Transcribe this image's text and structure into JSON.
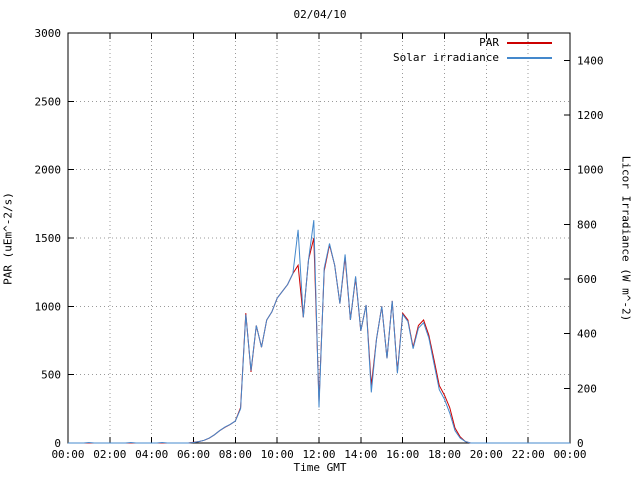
{
  "title": "02/04/10",
  "axes": {
    "x_label": "Time GMT",
    "y_left_label": "PAR (uEm^-2/s)",
    "y_right_label": "Licor Irradiance (W m^-2)"
  },
  "chart_data": {
    "type": "line",
    "title": "02/04/10",
    "xlabel": "Time GMT",
    "ylabel_left": "PAR (uEm^-2/s)",
    "ylabel_right": "Licor Irradiance (W m^-2)",
    "xlim": [
      0,
      24
    ],
    "ylim_left": [
      0,
      3000
    ],
    "ylim_right": [
      0,
      1500
    ],
    "grid": true,
    "legend_position": "top-right",
    "xticks": {
      "hours": [
        0,
        2,
        4,
        6,
        8,
        10,
        12,
        14,
        16,
        18,
        20,
        22,
        24
      ],
      "labels": [
        "00:00",
        "02:00",
        "04:00",
        "06:00",
        "08:00",
        "10:00",
        "12:00",
        "14:00",
        "16:00",
        "18:00",
        "20:00",
        "22:00",
        "00:00"
      ]
    },
    "yticks_left": [
      0,
      500,
      1000,
      1500,
      2000,
      2500,
      3000
    ],
    "yticks_right": [
      0,
      200,
      400,
      600,
      800,
      1000,
      1200,
      1400
    ],
    "x_hours": [
      0,
      0.25,
      0.5,
      0.75,
      1,
      1.25,
      1.5,
      1.75,
      2,
      2.25,
      2.5,
      2.75,
      3,
      3.25,
      3.5,
      3.75,
      4,
      4.25,
      4.5,
      4.75,
      5,
      5.25,
      5.5,
      5.75,
      6,
      6.25,
      6.5,
      6.75,
      7,
      7.25,
      7.5,
      7.75,
      8,
      8.25,
      8.5,
      8.75,
      9,
      9.25,
      9.5,
      9.75,
      10,
      10.25,
      10.5,
      10.75,
      11,
      11.25,
      11.5,
      11.75,
      12,
      12.25,
      12.5,
      12.75,
      13,
      13.25,
      13.5,
      13.75,
      14,
      14.25,
      14.5,
      14.75,
      15,
      15.25,
      15.5,
      15.75,
      16,
      16.25,
      16.5,
      16.75,
      17,
      17.25,
      17.5,
      17.75,
      18,
      18.25,
      18.5,
      18.75,
      19,
      19.25,
      19.5,
      19.75,
      20,
      20.25,
      20.5,
      20.75,
      21,
      21.25,
      21.5,
      21.75,
      22,
      22.25,
      22.5,
      22.75,
      23,
      23.25,
      23.5,
      23.75,
      24
    ],
    "series": [
      {
        "name": "PAR",
        "axis": "left",
        "color": "#cc0000",
        "values": [
          0,
          0,
          0,
          0,
          0,
          0,
          0,
          0,
          0,
          0,
          0,
          0,
          0,
          0,
          0,
          0,
          0,
          0,
          0,
          0,
          0,
          0,
          0,
          0,
          5,
          10,
          20,
          35,
          60,
          90,
          115,
          135,
          160,
          260,
          950,
          520,
          860,
          700,
          900,
          960,
          1060,
          1110,
          1160,
          1240,
          1300,
          920,
          1340,
          1500,
          300,
          1260,
          1450,
          1300,
          1020,
          1360,
          900,
          1210,
          820,
          1010,
          420,
          760,
          1000,
          620,
          1040,
          520,
          950,
          900,
          700,
          860,
          900,
          790,
          610,
          420,
          350,
          260,
          110,
          45,
          10,
          0,
          0,
          0,
          0,
          0,
          0,
          0,
          0,
          0,
          0,
          0,
          0,
          0,
          0,
          0,
          0,
          0,
          0,
          0,
          0
        ]
      },
      {
        "name": "Solar irradiance",
        "axis": "right",
        "color": "#4488cc",
        "values": [
          0,
          0,
          0,
          0,
          2,
          0,
          0,
          0,
          0,
          0,
          0,
          0,
          2,
          0,
          0,
          0,
          0,
          0,
          2,
          0,
          0,
          0,
          0,
          0,
          2,
          5,
          10,
          18,
          30,
          45,
          58,
          68,
          80,
          125,
          470,
          265,
          430,
          350,
          450,
          480,
          530,
          555,
          580,
          620,
          780,
          460,
          670,
          815,
          130,
          640,
          730,
          650,
          510,
          690,
          450,
          610,
          410,
          505,
          185,
          380,
          500,
          310,
          520,
          255,
          470,
          445,
          345,
          420,
          440,
          385,
          290,
          195,
          160,
          110,
          45,
          18,
          5,
          0,
          0,
          0,
          0,
          0,
          0,
          0,
          0,
          0,
          0,
          0,
          0,
          0,
          0,
          0,
          0,
          0,
          0,
          0,
          0
        ]
      }
    ]
  }
}
